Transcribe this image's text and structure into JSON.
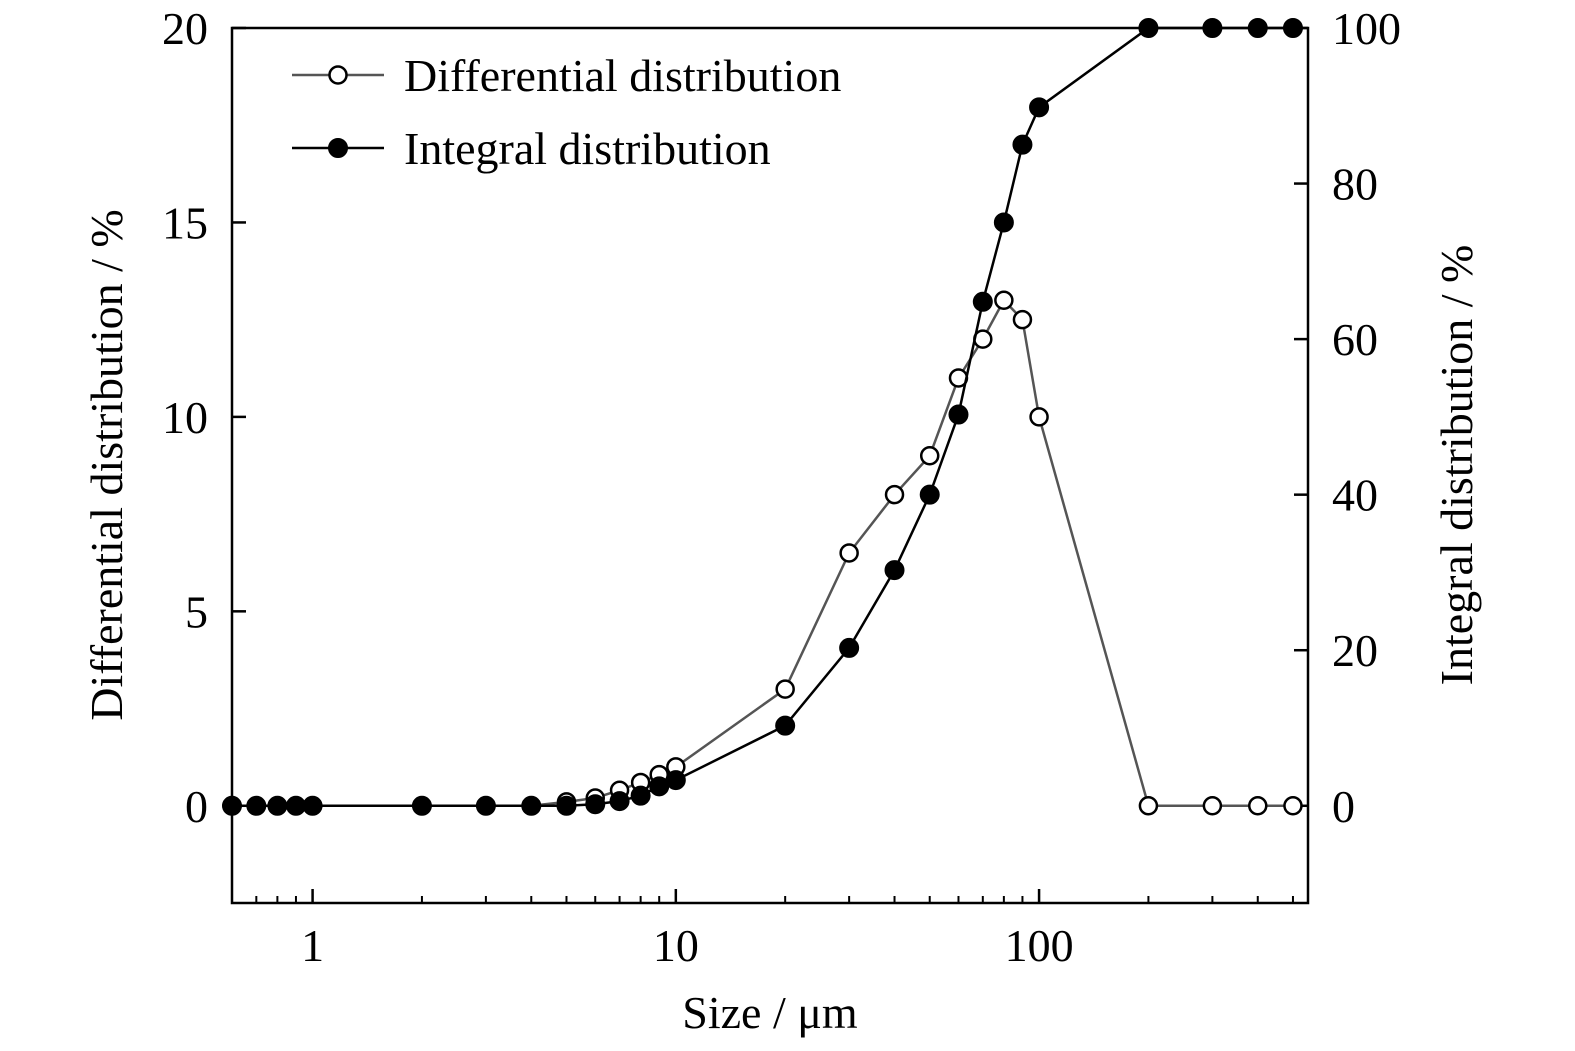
{
  "chart_data": {
    "type": "line",
    "xlabel": "Size / μm",
    "ylabel": "Differential distribution / %",
    "y2label": "Integral distribution / %",
    "xscale": "log",
    "xlim": [
      0.6,
      550
    ],
    "ylim": [
      -2.5,
      20
    ],
    "y2lim": [
      -12.5,
      100
    ],
    "x_ticks": [
      1,
      10,
      100
    ],
    "x_tick_labels": [
      "1",
      "10",
      "100"
    ],
    "y_ticks": [
      0,
      5,
      10,
      15,
      20
    ],
    "y_tick_labels": [
      "0",
      "5",
      "10",
      "15",
      "20"
    ],
    "y2_ticks": [
      0,
      20,
      40,
      60,
      80,
      100
    ],
    "y2_tick_labels": [
      "0",
      "20",
      "40",
      "60",
      "80",
      "100"
    ],
    "grid": false,
    "legend_position": "top-left",
    "series": [
      {
        "name": "Differential distribution",
        "axis": "left",
        "marker": "open-circle",
        "color": "#555555",
        "x": [
          0.6,
          0.7,
          0.8,
          0.9,
          1,
          2,
          3,
          4,
          5,
          6,
          7,
          8,
          9,
          10,
          20,
          30,
          40,
          50,
          60,
          70,
          80,
          90,
          100,
          200,
          300,
          400,
          500
        ],
        "y": [
          0,
          0,
          0,
          0,
          0,
          0,
          0,
          0,
          0.1,
          0.2,
          0.4,
          0.6,
          0.8,
          1.0,
          3.0,
          6.5,
          8.0,
          9.0,
          11.0,
          12.0,
          13.0,
          12.5,
          10.0,
          0,
          0,
          0,
          0
        ]
      },
      {
        "name": "Integral distribution",
        "axis": "right",
        "marker": "filled-circle",
        "color": "#000000",
        "x": [
          0.6,
          0.7,
          0.8,
          0.9,
          1,
          2,
          3,
          4,
          5,
          6,
          7,
          8,
          9,
          10,
          20,
          30,
          40,
          50,
          60,
          70,
          80,
          90,
          100,
          200,
          300,
          400,
          500
        ],
        "y": [
          0,
          0,
          0,
          0,
          0,
          0,
          0,
          0,
          0,
          0.2,
          0.6,
          1.3,
          2.5,
          3.3,
          10.3,
          20.3,
          30.3,
          40.0,
          50.3,
          64.8,
          75.0,
          85.0,
          89.8,
          100,
          100,
          100,
          100
        ]
      }
    ]
  }
}
